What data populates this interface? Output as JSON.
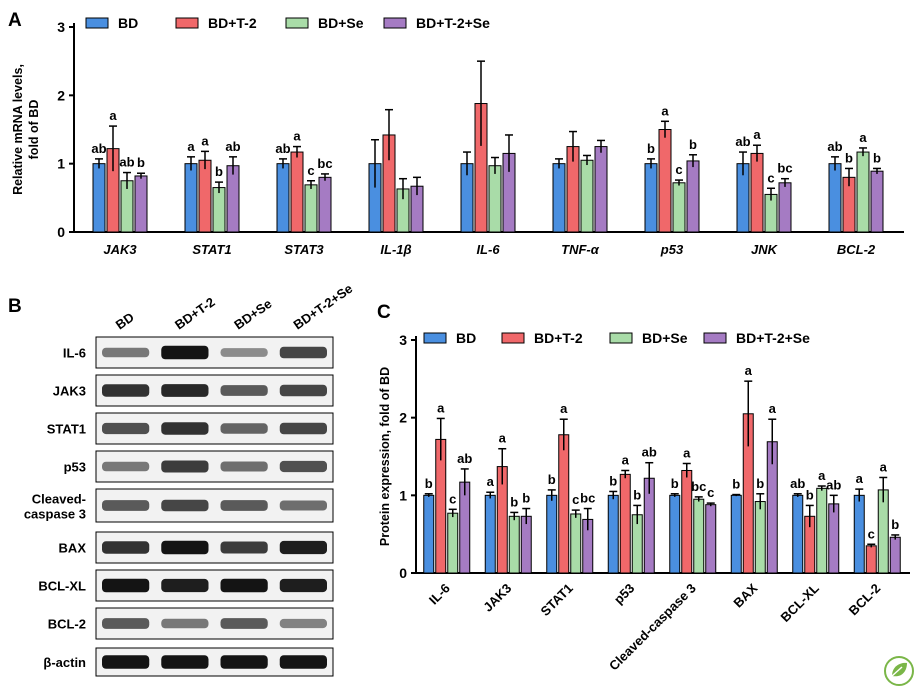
{
  "colors": {
    "BD": "#4a8fe0",
    "BD+T-2": "#f0686a",
    "BD+Se": "#a9dca8",
    "BD+T-2+Se": "#a57bc3",
    "logo": "#7ab648"
  },
  "panel_labels": [
    "A",
    "B",
    "C"
  ],
  "logo_icon": "leaf-logo-icon",
  "blot": {
    "lanes": [
      "BD",
      "BD+T-2",
      "BD+Se",
      "BD+T-2+Se"
    ],
    "rows": [
      {
        "label": "IL-6",
        "intensity": [
          0.45,
          0.95,
          0.35,
          0.7
        ]
      },
      {
        "label": "JAK3",
        "intensity": [
          0.8,
          0.85,
          0.6,
          0.7
        ]
      },
      {
        "label": "STAT1",
        "intensity": [
          0.65,
          0.8,
          0.55,
          0.7
        ]
      },
      {
        "label": "p53",
        "intensity": [
          0.45,
          0.75,
          0.5,
          0.65
        ]
      },
      {
        "label": "Cleaved-\ncaspase 3",
        "intensity": [
          0.6,
          0.7,
          0.6,
          0.5
        ]
      },
      {
        "label": "BAX",
        "intensity": [
          0.8,
          0.95,
          0.75,
          0.9
        ]
      },
      {
        "label": "BCL-XL",
        "intensity": [
          0.95,
          0.9,
          0.95,
          0.9
        ]
      },
      {
        "label": "BCL-2",
        "intensity": [
          0.6,
          0.45,
          0.6,
          0.4
        ]
      },
      {
        "label": "β-actin",
        "intensity": [
          0.95,
          0.95,
          0.95,
          0.95
        ]
      }
    ]
  },
  "chart_data": [
    {
      "panel": "A",
      "type": "bar",
      "ylabel": "Relative mRNA levels,\nfold of BD",
      "xlabel": "",
      "ylim": [
        0,
        3
      ],
      "yticks": [
        0,
        1,
        2,
        3
      ],
      "legend_position": "top",
      "categories": [
        "JAK3",
        "STAT1",
        "STAT3",
        "IL-1β",
        "IL-6",
        "TNF-α",
        "p53",
        "JNK",
        "BCL-2"
      ],
      "series": [
        {
          "name": "BD",
          "values": [
            1.0,
            1.0,
            1.0,
            1.0,
            1.0,
            1.0,
            1.0,
            1.0,
            1.0
          ],
          "errors": [
            0.07,
            0.1,
            0.07,
            0.35,
            0.17,
            0.07,
            0.07,
            0.17,
            0.1
          ],
          "labels": [
            "ab",
            "a",
            "ab",
            "",
            "",
            "",
            "b",
            "ab",
            "ab"
          ]
        },
        {
          "name": "BD+T-2",
          "values": [
            1.22,
            1.05,
            1.17,
            1.42,
            1.88,
            1.25,
            1.5,
            1.15,
            0.8
          ],
          "errors": [
            0.33,
            0.13,
            0.08,
            0.37,
            0.62,
            0.22,
            0.12,
            0.12,
            0.13
          ],
          "labels": [
            "a",
            "a",
            "a",
            "",
            "",
            "",
            "a",
            "a",
            "b"
          ]
        },
        {
          "name": "BD+Se",
          "values": [
            0.75,
            0.65,
            0.69,
            0.63,
            0.97,
            1.05,
            0.72,
            0.55,
            1.17
          ],
          "errors": [
            0.12,
            0.08,
            0.06,
            0.15,
            0.12,
            0.07,
            0.04,
            0.09,
            0.06
          ],
          "labels": [
            "ab",
            "b",
            "c",
            "",
            "",
            "",
            "c",
            "c",
            "a"
          ]
        },
        {
          "name": "BD+T-2+Se",
          "values": [
            0.82,
            0.97,
            0.8,
            0.67,
            1.15,
            1.25,
            1.04,
            0.72,
            0.89
          ],
          "errors": [
            0.04,
            0.13,
            0.05,
            0.13,
            0.27,
            0.09,
            0.09,
            0.06,
            0.04
          ],
          "labels": [
            "b",
            "ab",
            "bc",
            "",
            "",
            "",
            "b",
            "bc",
            "b"
          ]
        }
      ]
    },
    {
      "panel": "C",
      "type": "bar",
      "ylabel": "Protein expression, fold of BD",
      "xlabel": "",
      "ylim": [
        0,
        3
      ],
      "yticks": [
        0,
        1,
        2,
        3
      ],
      "legend_position": "top",
      "categories": [
        "IL-6",
        "JAK3",
        "STAT1",
        "p53",
        "Cleaved-caspase 3",
        "BAX",
        "BCL-XL",
        "BCL-2"
      ],
      "series": [
        {
          "name": "BD",
          "values": [
            1.0,
            1.0,
            1.0,
            1.0,
            1.0,
            1.0,
            1.0,
            1.0
          ],
          "errors": [
            0.02,
            0.04,
            0.07,
            0.05,
            0.02,
            0.01,
            0.02,
            0.08
          ],
          "labels": [
            "b",
            "a",
            "b",
            "b",
            "b",
            "b",
            "ab",
            "a"
          ]
        },
        {
          "name": "BD+T-2",
          "values": [
            1.72,
            1.37,
            1.78,
            1.27,
            1.32,
            2.05,
            0.73,
            0.35
          ],
          "errors": [
            0.27,
            0.23,
            0.2,
            0.05,
            0.09,
            0.42,
            0.14,
            0.02
          ],
          "labels": [
            "a",
            "a",
            "a",
            "a",
            "a",
            "a",
            "b",
            "c"
          ]
        },
        {
          "name": "BD+Se",
          "values": [
            0.77,
            0.73,
            0.76,
            0.75,
            0.95,
            0.92,
            1.09,
            1.07
          ],
          "errors": [
            0.05,
            0.05,
            0.05,
            0.12,
            0.03,
            0.1,
            0.03,
            0.16
          ],
          "labels": [
            "c",
            "b",
            "c",
            "b",
            "bc",
            "b",
            "a",
            "a"
          ]
        },
        {
          "name": "BD+T-2+Se",
          "values": [
            1.17,
            0.73,
            0.69,
            1.22,
            0.88,
            1.69,
            0.89,
            0.46
          ],
          "errors": [
            0.17,
            0.1,
            0.14,
            0.2,
            0.02,
            0.29,
            0.11,
            0.03
          ],
          "labels": [
            "ab",
            "b",
            "bc",
            "ab",
            "c",
            "a",
            "ab",
            "b"
          ]
        }
      ]
    }
  ]
}
